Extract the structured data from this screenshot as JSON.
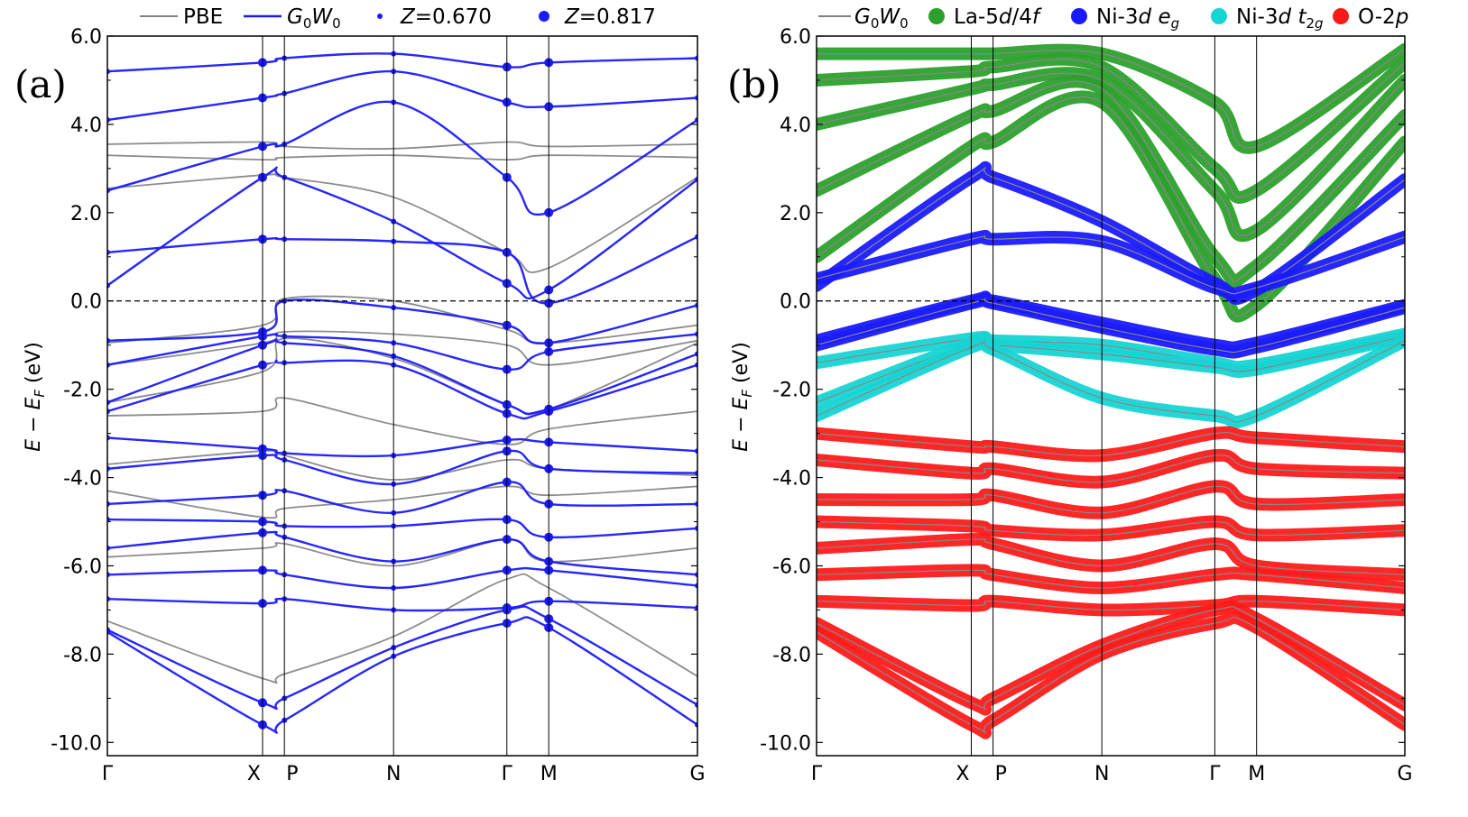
{
  "chart_data": [
    {
      "type": "line",
      "panel_label": "(a)",
      "ylabel": "E − E_F (eV)",
      "ylim": [
        -10.3,
        6.0
      ],
      "yticks": [
        -10.0,
        -8.0,
        -6.0,
        -4.0,
        -2.0,
        0.0,
        2.0,
        4.0,
        6.0
      ],
      "ytick_labels": [
        "-10.0",
        "-8.0",
        "-6.0",
        "-4.0",
        "-2.0",
        "0.0",
        "2.0",
        "4.0",
        "6.0"
      ],
      "kpath": [
        {
          "label": "Γ",
          "k": 0.0
        },
        {
          "label": "X",
          "k": 0.263
        },
        {
          "label": "P",
          "k": 0.3
        },
        {
          "label": "N",
          "k": 0.485
        },
        {
          "label": "Γ",
          "k": 0.677
        },
        {
          "label": "M",
          "k": 0.748
        },
        {
          "label": "G",
          "k": 1.0
        }
      ],
      "fermi_level": 0.0,
      "legend": [
        {
          "label": "PBE",
          "kind": "line",
          "color": "#808080"
        },
        {
          "label": "G0W0",
          "kind": "line",
          "color": "#1a1aff"
        },
        {
          "label": "Z=0.670",
          "kind": "small-dot",
          "color": "#1a1aff"
        },
        {
          "label": "Z=0.817",
          "kind": "large-dot",
          "color": "#1a1aff"
        }
      ],
      "series": [
        {
          "name": "PBE valence",
          "color": "#808080",
          "bands": [
            [
              -0.95,
              -0.55,
              0.05,
              0.0,
              -0.65,
              -0.95,
              -0.55
            ],
            [
              -1.45,
              -0.95,
              -0.7,
              -0.75,
              -1.0,
              -1.45,
              -0.9
            ],
            [
              -2.3,
              -1.6,
              -0.85,
              -1.3,
              -2.35,
              -2.45,
              -0.95
            ],
            [
              -2.6,
              -2.5,
              -2.2,
              -2.8,
              -3.25,
              -2.9,
              -2.5
            ],
            [
              -3.7,
              -3.4,
              -3.5,
              -4.05,
              -3.6,
              -3.8,
              -3.95
            ],
            [
              -4.3,
              -4.9,
              -4.7,
              -4.5,
              -4.2,
              -4.4,
              -4.2
            ],
            [
              -5.8,
              -5.6,
              -5.5,
              -6.0,
              -5.4,
              -5.9,
              -5.6
            ],
            [
              -7.25,
              -8.55,
              -8.45,
              -7.6,
              -6.3,
              -6.5,
              -8.5
            ]
          ]
        },
        {
          "name": "PBE conduction",
          "color": "#808080",
          "bands": [
            [
              3.3,
              3.2,
              3.25,
              3.3,
              3.2,
              3.3,
              3.25
            ],
            [
              3.55,
              3.6,
              3.5,
              3.45,
              3.6,
              3.5,
              3.55
            ],
            [
              2.55,
              2.85,
              2.8,
              2.35,
              1.1,
              0.75,
              2.8
            ]
          ]
        },
        {
          "name": "G0W0 valence",
          "color": "#1a1aff",
          "bands": [
            [
              -0.9,
              -0.7,
              0.0,
              -0.15,
              -0.55,
              -0.95,
              -0.1
            ],
            [
              -1.45,
              -0.8,
              -0.8,
              -0.95,
              -1.55,
              -1.15,
              -0.75
            ],
            [
              -2.3,
              -1.0,
              -0.95,
              -1.25,
              -2.35,
              -2.45,
              -1.2
            ],
            [
              -2.5,
              -1.45,
              -1.4,
              -1.45,
              -2.55,
              -2.5,
              -1.45
            ],
            [
              -3.1,
              -3.35,
              -3.45,
              -3.5,
              -3.15,
              -3.2,
              -3.4
            ],
            [
              -3.8,
              -3.5,
              -3.6,
              -4.15,
              -3.4,
              -3.8,
              -3.9
            ],
            [
              -4.6,
              -4.4,
              -4.3,
              -4.8,
              -4.1,
              -4.6,
              -4.6
            ],
            [
              -4.95,
              -5.0,
              -5.1,
              -5.1,
              -4.95,
              -5.35,
              -5.15
            ],
            [
              -5.6,
              -5.25,
              -5.35,
              -5.9,
              -5.4,
              -5.9,
              -6.2
            ],
            [
              -6.2,
              -6.1,
              -6.2,
              -6.5,
              -6.1,
              -6.1,
              -6.45
            ],
            [
              -6.75,
              -6.85,
              -6.75,
              -7.0,
              -6.95,
              -6.8,
              -6.95
            ],
            [
              -7.45,
              -9.1,
              -9.0,
              -7.85,
              -7.0,
              -7.2,
              -9.15
            ],
            [
              -7.5,
              -9.6,
              -9.5,
              -8.05,
              -7.3,
              -7.4,
              -9.6
            ]
          ]
        },
        {
          "name": "G0W0 conduction",
          "color": "#1a1aff",
          "bands": [
            [
              0.35,
              2.8,
              2.8,
              1.8,
              0.4,
              0.25,
              2.75
            ],
            [
              1.1,
              1.4,
              1.4,
              1.35,
              1.1,
              -0.05,
              1.45
            ],
            [
              2.5,
              3.5,
              3.55,
              4.5,
              2.8,
              2.0,
              4.1
            ],
            [
              4.1,
              4.6,
              4.7,
              5.2,
              4.5,
              4.4,
              4.6
            ],
            [
              5.2,
              5.4,
              5.5,
              5.6,
              5.3,
              5.4,
              5.5
            ]
          ]
        }
      ]
    },
    {
      "type": "line",
      "panel_label": "(b)",
      "ylabel": "E − E_F (eV)",
      "ylim": [
        -10.3,
        6.0
      ],
      "yticks": [
        -10.0,
        -8.0,
        -6.0,
        -4.0,
        -2.0,
        0.0,
        2.0,
        4.0,
        6.0
      ],
      "ytick_labels": [
        "-10.0",
        "-8.0",
        "-6.0",
        "-4.0",
        "-2.0",
        "0.0",
        "2.0",
        "4.0",
        "6.0"
      ],
      "kpath": [
        {
          "label": "Γ",
          "k": 0.0
        },
        {
          "label": "X",
          "k": 0.263
        },
        {
          "label": "P",
          "k": 0.3
        },
        {
          "label": "N",
          "k": 0.485
        },
        {
          "label": "Γ",
          "k": 0.677
        },
        {
          "label": "M",
          "k": 0.748
        },
        {
          "label": "G",
          "k": 1.0
        }
      ],
      "fermi_level": 0.0,
      "legend": [
        {
          "label": "G0W0",
          "kind": "line",
          "color": "#808080"
        },
        {
          "label": "La-5d/4f",
          "kind": "dot",
          "color": "#2ca02c"
        },
        {
          "label": "Ni-3d e_g",
          "kind": "dot",
          "color": "#1a1aff"
        },
        {
          "label": "Ni-3d t_2g",
          "kind": "dot",
          "color": "#17d4d4"
        },
        {
          "label": "O-2p",
          "kind": "dot",
          "color": "#ff1a1a"
        }
      ],
      "series": [
        {
          "name": "La-5d/4f",
          "color": "#2ca02c",
          "bands": [
            [
              1.0,
              3.5,
              3.6,
              4.5,
              0.5,
              -0.1,
              3.6
            ],
            [
              2.5,
              4.2,
              4.3,
              4.8,
              1.0,
              0.8,
              4.2
            ],
            [
              4.0,
              4.8,
              4.9,
              5.0,
              2.5,
              1.6,
              5.0
            ],
            [
              5.0,
              5.2,
              5.3,
              5.3,
              3.0,
              2.5,
              5.4
            ],
            [
              5.6,
              5.6,
              5.6,
              5.6,
              4.5,
              3.5,
              5.7
            ]
          ]
        },
        {
          "name": "Ni-3d e_g",
          "color": "#1a1aff",
          "bands": [
            [
              0.35,
              2.8,
              2.8,
              1.8,
              0.4,
              0.25,
              2.75
            ],
            [
              0.5,
              1.4,
              1.4,
              1.35,
              0.3,
              0.3,
              1.45
            ],
            [
              -0.9,
              0.0,
              0.0,
              -0.5,
              -1.0,
              -0.95,
              -0.1
            ],
            [
              -1.0,
              -0.05,
              -0.05,
              -0.6,
              -1.1,
              -1.05,
              -0.15
            ]
          ]
        },
        {
          "name": "Ni-3d t_2g",
          "color": "#17d4d4",
          "bands": [
            [
              -1.4,
              -0.85,
              -0.9,
              -1.0,
              -1.4,
              -1.45,
              -0.75
            ],
            [
              -2.3,
              -0.95,
              -1.0,
              -1.2,
              -1.5,
              -1.55,
              -0.8
            ],
            [
              -2.6,
              -1.05,
              -1.1,
              -2.2,
              -2.6,
              -2.6,
              -0.9
            ]
          ]
        },
        {
          "name": "O-2p",
          "color": "#ff1a1a",
          "bands": [
            [
              -3.0,
              -3.3,
              -3.3,
              -3.5,
              -3.0,
              -3.1,
              -3.3
            ],
            [
              -3.6,
              -3.9,
              -3.8,
              -4.1,
              -3.5,
              -3.8,
              -3.9
            ],
            [
              -4.5,
              -4.5,
              -4.4,
              -4.8,
              -4.2,
              -4.6,
              -4.5
            ],
            [
              -5.0,
              -5.1,
              -5.2,
              -5.3,
              -5.0,
              -5.3,
              -5.2
            ],
            [
              -5.6,
              -5.4,
              -5.5,
              -6.0,
              -5.5,
              -6.0,
              -6.2
            ],
            [
              -6.2,
              -6.1,
              -6.2,
              -6.5,
              -6.2,
              -6.2,
              -6.5
            ],
            [
              -6.8,
              -6.9,
              -6.8,
              -7.0,
              -6.9,
              -6.8,
              -7.0
            ],
            [
              -7.3,
              -9.1,
              -9.0,
              -7.8,
              -7.0,
              -7.2,
              -9.15
            ],
            [
              -7.5,
              -9.6,
              -9.5,
              -8.0,
              -7.3,
              -7.4,
              -9.6
            ]
          ]
        }
      ]
    }
  ]
}
